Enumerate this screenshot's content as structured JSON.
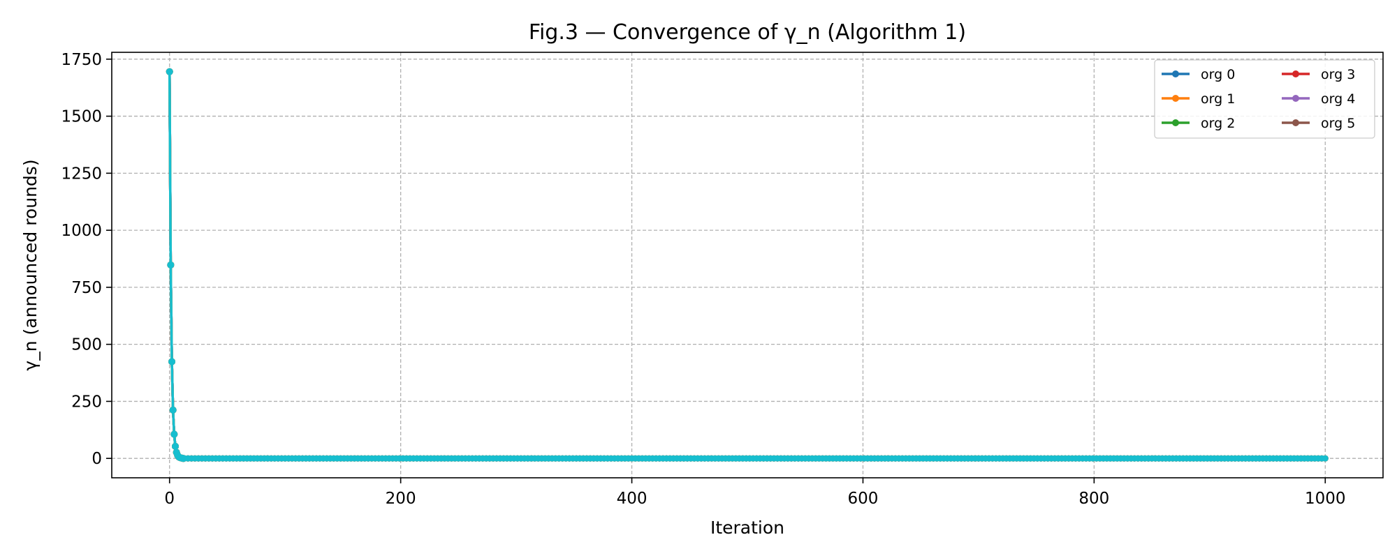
{
  "chart_data": {
    "type": "line",
    "title": "Fig.3 — Convergence of γ_n (Algorithm 1)",
    "xlabel": "Iteration",
    "ylabel": "γ_n (announced rounds)",
    "xlim": [
      -50,
      1050
    ],
    "ylim": [
      -85,
      1780
    ],
    "xticks": [
      0,
      200,
      400,
      600,
      800,
      1000
    ],
    "yticks": [
      0,
      250,
      500,
      750,
      1000,
      1250,
      1500,
      1750
    ],
    "grid": true,
    "legend_position": "top-right",
    "legend_columns": 2,
    "x": [
      0,
      1,
      2,
      3,
      4,
      5,
      6,
      7,
      8,
      9,
      10,
      11,
      12,
      1000
    ],
    "series": [
      {
        "name": "org 0",
        "color": "#1f77b4",
        "values": [
          1695,
          848,
          424,
          212,
          106,
          53,
          26.5,
          13.2,
          6.6,
          3.3,
          1.7,
          0.8,
          0,
          0
        ]
      },
      {
        "name": "org 1",
        "color": "#ff7f0e",
        "values": [
          1695,
          848,
          424,
          212,
          106,
          53,
          26.5,
          13.2,
          6.6,
          3.3,
          1.7,
          0.8,
          0,
          0
        ]
      },
      {
        "name": "org 2",
        "color": "#2ca02c",
        "values": [
          1695,
          848,
          424,
          212,
          106,
          53,
          26.5,
          13.2,
          6.6,
          3.3,
          1.7,
          0.8,
          0,
          0
        ]
      },
      {
        "name": "org 3",
        "color": "#d62728",
        "values": [
          1695,
          848,
          424,
          212,
          106,
          53,
          26.5,
          13.2,
          6.6,
          3.3,
          1.7,
          0.8,
          0,
          0
        ]
      },
      {
        "name": "org 4",
        "color": "#9467bd",
        "values": [
          1695,
          848,
          424,
          212,
          106,
          53,
          26.5,
          13.2,
          6.6,
          3.3,
          1.7,
          0.8,
          0,
          0
        ]
      },
      {
        "name": "org 5",
        "color": "#8c564b",
        "values": [
          1695,
          848,
          424,
          212,
          106,
          53,
          26.5,
          13.2,
          6.6,
          3.3,
          1.7,
          0.8,
          0,
          0
        ]
      },
      {
        "color": "#e377c2",
        "values": [
          1695,
          848,
          424,
          212,
          106,
          53,
          26.5,
          13.2,
          6.6,
          3.3,
          1.7,
          0.8,
          0,
          0
        ]
      },
      {
        "color": "#7f7f7f",
        "values": [
          1695,
          848,
          424,
          212,
          106,
          53,
          26.5,
          13.2,
          6.6,
          3.3,
          1.7,
          0.8,
          0,
          0
        ]
      },
      {
        "color": "#bcbd22",
        "values": [
          1695,
          848,
          424,
          212,
          106,
          53,
          26.5,
          13.2,
          6.6,
          3.3,
          1.7,
          0.8,
          0,
          0
        ]
      },
      {
        "color": "#17becf",
        "values": [
          1695,
          848,
          424,
          212,
          106,
          53,
          26.5,
          13.2,
          6.6,
          3.3,
          1.7,
          0.8,
          0,
          0
        ]
      }
    ]
  }
}
